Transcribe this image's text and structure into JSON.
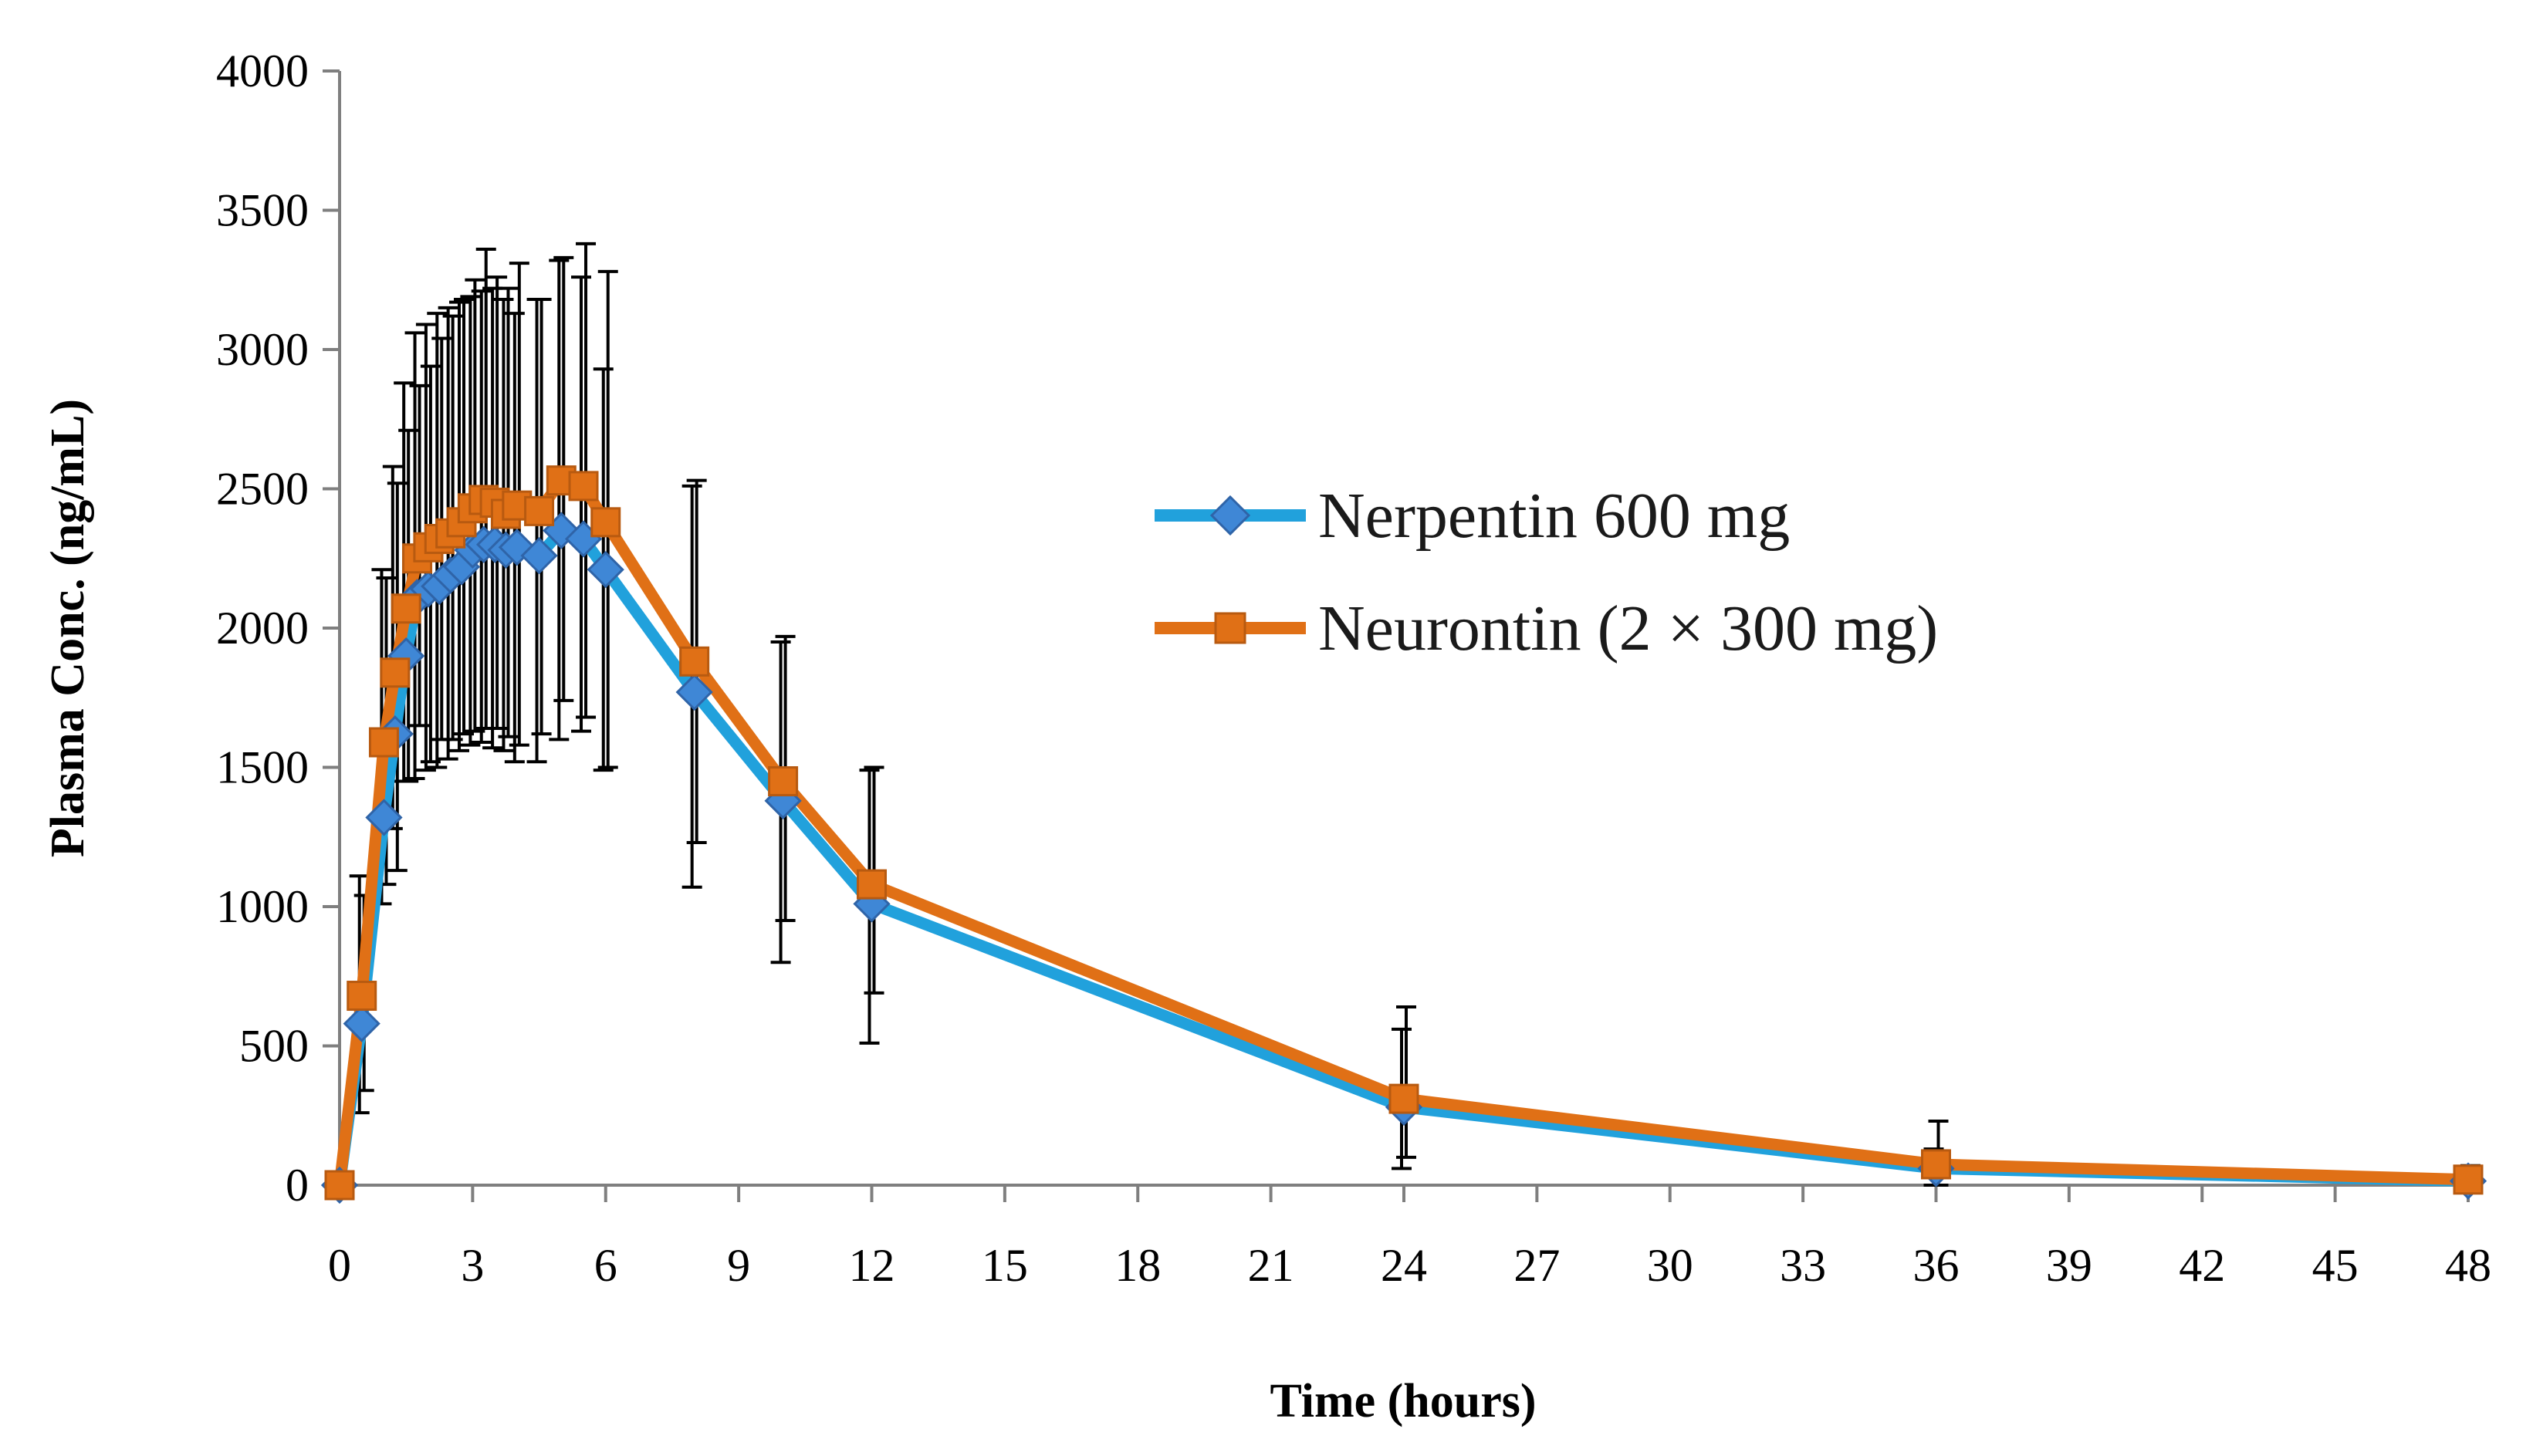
{
  "chart_data": {
    "type": "line",
    "title": "",
    "xlabel": "Time (hours)",
    "ylabel": "Plasma Conc. (ng/mL)",
    "xlim": [
      0,
      48
    ],
    "ylim": [
      0,
      4000
    ],
    "xticks": [
      0,
      3,
      6,
      9,
      12,
      15,
      18,
      21,
      24,
      27,
      30,
      33,
      36,
      39,
      42,
      45,
      48
    ],
    "yticks": [
      0,
      500,
      1000,
      1500,
      2000,
      2500,
      3000,
      3500,
      4000
    ],
    "x": [
      0,
      0.5,
      1,
      1.25,
      1.5,
      1.75,
      2,
      2.25,
      2.5,
      2.75,
      3,
      3.25,
      3.5,
      3.75,
      4,
      4.5,
      5,
      5.5,
      6,
      8,
      10,
      12,
      24,
      36,
      48
    ],
    "grid": false,
    "legend_position": "center-right",
    "series": [
      {
        "name": "Nerpentin 600 mg",
        "color": "#21a1dc",
        "marker_color": "#3f87d6",
        "marker_edge": "#2f64a8",
        "marker": "diamond",
        "values": [
          0,
          580,
          1320,
          1620,
          1900,
          2110,
          2140,
          2150,
          2190,
          2220,
          2280,
          2300,
          2300,
          2280,
          2290,
          2260,
          2350,
          2320,
          2210,
          1770,
          1380,
          1010,
          280,
          60,
          15
        ],
        "error_upper": [
          null,
          1110,
          2210,
          2580,
          2880,
          3060,
          3090,
          3130,
          3150,
          3170,
          3190,
          3210,
          3220,
          3180,
          3130,
          3180,
          3320,
          3260,
          2930,
          2510,
          1950,
          1490,
          560,
          130,
          50
        ],
        "error_lower": [
          null,
          260,
          1010,
          1280,
          1450,
          1460,
          1490,
          1500,
          1530,
          1560,
          1580,
          1590,
          1570,
          1560,
          1520,
          1520,
          1600,
          1630,
          1490,
          1070,
          800,
          510,
          60,
          0,
          0
        ]
      },
      {
        "name": "Neurontin (2 × 300 mg)",
        "color": "#e07016",
        "marker_color": "#e07016",
        "marker_edge": "#b85a10",
        "marker": "square",
        "values": [
          0,
          680,
          1590,
          1840,
          2070,
          2250,
          2290,
          2320,
          2340,
          2380,
          2430,
          2460,
          2450,
          2410,
          2440,
          2420,
          2530,
          2510,
          2380,
          1880,
          1450,
          1080,
          310,
          75,
          20
        ],
        "error_upper": [
          null,
          1040,
          2180,
          2520,
          2710,
          2870,
          2940,
          3040,
          3120,
          3180,
          3250,
          3360,
          3260,
          3220,
          3310,
          3180,
          3330,
          3380,
          3280,
          2530,
          1970,
          1500,
          640,
          230,
          70
        ],
        "error_lower": [
          null,
          340,
          1080,
          1130,
          1450,
          1650,
          1520,
          1600,
          1600,
          1620,
          1630,
          1640,
          1640,
          1610,
          1580,
          1620,
          1740,
          1680,
          1500,
          1230,
          950,
          690,
          100,
          0,
          0
        ]
      }
    ]
  }
}
